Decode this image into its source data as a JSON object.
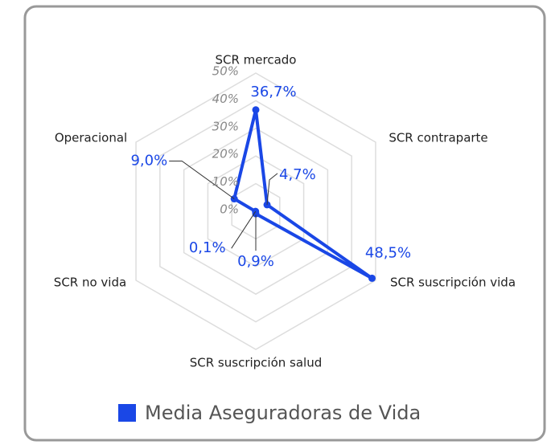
{
  "chart_data": {
    "type": "radar",
    "categories": [
      "SCR mercado",
      "SCR contraparte",
      "SCR suscripción vida",
      "SCR suscripción salud",
      "SCR no vida",
      "Operacional"
    ],
    "series": [
      {
        "name": "Media Aseguradoras de Vida",
        "color": "#1a47e6",
        "values": [
          36.7,
          4.7,
          48.5,
          0.9,
          0.1,
          9.0
        ],
        "value_labels": [
          "36,7%",
          "4,7%",
          "48,5%",
          "0,9%",
          "0,1%",
          "9,0%"
        ]
      }
    ],
    "ylim": [
      0,
      50
    ],
    "yticks": [
      {
        "value": 0,
        "label": "0%"
      },
      {
        "value": 10,
        "label": "10%"
      },
      {
        "value": 20,
        "label": "20%"
      },
      {
        "value": 30,
        "label": "30%"
      },
      {
        "value": 40,
        "label": "40%"
      },
      {
        "value": 50,
        "label": "50%"
      }
    ],
    "grid": true
  }
}
